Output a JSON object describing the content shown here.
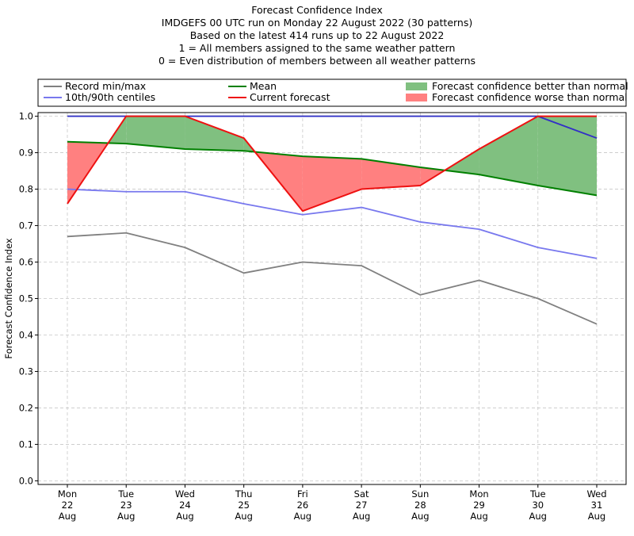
{
  "chart_data": {
    "type": "line",
    "title_lines": [
      "Forecast Confidence Index",
      "IMDGEFS 00 UTC run on Monday 22 August 2022 (30 patterns)",
      "Based on the latest 414 runs up to 22 August 2022",
      "1 = All members assigned to the same weather pattern",
      "0 = Even distribution of members between all weather patterns"
    ],
    "ylabel": "Forecast Confidence Index",
    "xlabel": "",
    "ylim": [
      -0.01,
      1.01
    ],
    "yticks": [
      "0.0",
      "0.1",
      "0.2",
      "0.3",
      "0.4",
      "0.5",
      "0.6",
      "0.7",
      "0.8",
      "0.9",
      "1.0"
    ],
    "categories": [
      {
        "day": "Mon",
        "date": "22",
        "month": "Aug"
      },
      {
        "day": "Tue",
        "date": "23",
        "month": "Aug"
      },
      {
        "day": "Wed",
        "date": "24",
        "month": "Aug"
      },
      {
        "day": "Thu",
        "date": "25",
        "month": "Aug"
      },
      {
        "day": "Fri",
        "date": "26",
        "month": "Aug"
      },
      {
        "day": "Sat",
        "date": "27",
        "month": "Aug"
      },
      {
        "day": "Sun",
        "date": "28",
        "month": "Aug"
      },
      {
        "day": "Mon",
        "date": "29",
        "month": "Aug"
      },
      {
        "day": "Tue",
        "date": "30",
        "month": "Aug"
      },
      {
        "day": "Wed",
        "date": "31",
        "month": "Aug"
      }
    ],
    "grid": true,
    "legend_placement": "top",
    "legend": [
      {
        "label": "Record min/max",
        "kind": "line",
        "color": "#808080"
      },
      {
        "label": "10th/90th centiles",
        "kind": "line",
        "color": "#7878ee"
      },
      {
        "label": "Mean",
        "kind": "line",
        "color": "#008000"
      },
      {
        "label": "Current forecast",
        "kind": "line",
        "color": "#ee1111"
      },
      {
        "label": "Forecast confidence better than normal",
        "kind": "patch",
        "color": "#80c080"
      },
      {
        "label": "Forecast confidence worse than normal",
        "kind": "patch",
        "color": "#ff8080"
      }
    ],
    "series": {
      "record_min": [
        0.67,
        0.68,
        0.64,
        0.57,
        0.6,
        0.59,
        0.51,
        0.55,
        0.5,
        0.43
      ],
      "record_max": [
        1.0,
        1.0,
        1.0,
        1.0,
        1.0,
        1.0,
        1.0,
        1.0,
        1.0,
        0.94
      ],
      "p10": [
        0.8,
        0.793,
        0.793,
        0.76,
        0.73,
        0.75,
        0.71,
        0.69,
        0.64,
        0.61
      ],
      "p90": [
        1.0,
        1.0,
        1.0,
        1.0,
        1.0,
        1.0,
        1.0,
        1.0,
        1.0,
        0.94
      ],
      "mean": [
        0.93,
        0.925,
        0.91,
        0.905,
        0.89,
        0.883,
        0.86,
        0.84,
        0.81,
        0.783
      ],
      "current": [
        0.76,
        1.0,
        1.0,
        0.94,
        0.74,
        0.8,
        0.81,
        0.91,
        1.0,
        1.0
      ]
    },
    "colors": {
      "record": "#808080",
      "centile": "#7878ee",
      "mean": "#008000",
      "current": "#ee1111",
      "better": "#80c080",
      "worse": "#ff8080",
      "top_line": "#3030c8"
    }
  }
}
